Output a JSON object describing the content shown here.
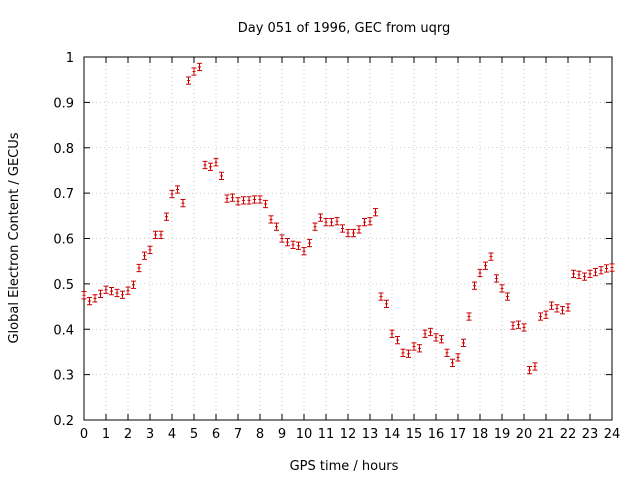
{
  "chart_data": {
    "type": "scatter",
    "title": "Day 051 of 1996, GEC from uqrg",
    "xlabel": "GPS time / hours",
    "ylabel": "Global Electron Content / GECUs",
    "xlim": [
      0,
      24
    ],
    "ylim": [
      0.2,
      1.0
    ],
    "xticks": [
      "0",
      "1",
      "2",
      "3",
      "4",
      "5",
      "6",
      "7",
      "8",
      "9",
      "10",
      "11",
      "12",
      "13",
      "14",
      "15",
      "16",
      "17",
      "18",
      "19",
      "20",
      "21",
      "22",
      "23",
      "24"
    ],
    "yticks": [
      "0.2",
      "0.3",
      "0.4",
      "0.5",
      "0.6",
      "0.7",
      "0.8",
      "0.9",
      "1"
    ],
    "grid": true,
    "marker": "error-bar",
    "series_color": "#cc0000",
    "errors": 0.008,
    "series": [
      {
        "points": [
          {
            "x": 0.0,
            "y": 0.475
          },
          {
            "x": 0.25,
            "y": 0.462
          },
          {
            "x": 0.5,
            "y": 0.468
          },
          {
            "x": 0.75,
            "y": 0.478
          },
          {
            "x": 1.0,
            "y": 0.487
          },
          {
            "x": 1.25,
            "y": 0.484
          },
          {
            "x": 1.5,
            "y": 0.48
          },
          {
            "x": 1.75,
            "y": 0.476
          },
          {
            "x": 2.0,
            "y": 0.485
          },
          {
            "x": 2.25,
            "y": 0.498
          },
          {
            "x": 2.5,
            "y": 0.535
          },
          {
            "x": 2.75,
            "y": 0.562
          },
          {
            "x": 3.0,
            "y": 0.575
          },
          {
            "x": 3.25,
            "y": 0.608
          },
          {
            "x": 3.5,
            "y": 0.608
          },
          {
            "x": 3.75,
            "y": 0.648
          },
          {
            "x": 4.0,
            "y": 0.698
          },
          {
            "x": 4.25,
            "y": 0.708
          },
          {
            "x": 4.5,
            "y": 0.678
          },
          {
            "x": 4.75,
            "y": 0.948
          },
          {
            "x": 5.0,
            "y": 0.968
          },
          {
            "x": 5.25,
            "y": 0.978
          },
          {
            "x": 5.5,
            "y": 0.762
          },
          {
            "x": 5.75,
            "y": 0.758
          },
          {
            "x": 6.0,
            "y": 0.768
          },
          {
            "x": 6.25,
            "y": 0.738
          },
          {
            "x": 6.5,
            "y": 0.688
          },
          {
            "x": 6.75,
            "y": 0.69
          },
          {
            "x": 7.0,
            "y": 0.682
          },
          {
            "x": 7.25,
            "y": 0.684
          },
          {
            "x": 7.5,
            "y": 0.684
          },
          {
            "x": 7.75,
            "y": 0.686
          },
          {
            "x": 8.0,
            "y": 0.686
          },
          {
            "x": 8.25,
            "y": 0.676
          },
          {
            "x": 8.5,
            "y": 0.642
          },
          {
            "x": 8.75,
            "y": 0.626
          },
          {
            "x": 9.0,
            "y": 0.6
          },
          {
            "x": 9.25,
            "y": 0.592
          },
          {
            "x": 9.5,
            "y": 0.586
          },
          {
            "x": 9.75,
            "y": 0.584
          },
          {
            "x": 10.0,
            "y": 0.572
          },
          {
            "x": 10.25,
            "y": 0.59
          },
          {
            "x": 10.5,
            "y": 0.626
          },
          {
            "x": 10.75,
            "y": 0.646
          },
          {
            "x": 11.0,
            "y": 0.636
          },
          {
            "x": 11.25,
            "y": 0.636
          },
          {
            "x": 11.5,
            "y": 0.638
          },
          {
            "x": 11.75,
            "y": 0.622
          },
          {
            "x": 12.0,
            "y": 0.612
          },
          {
            "x": 12.25,
            "y": 0.612
          },
          {
            "x": 12.5,
            "y": 0.62
          },
          {
            "x": 12.75,
            "y": 0.636
          },
          {
            "x": 13.0,
            "y": 0.638
          },
          {
            "x": 13.25,
            "y": 0.658
          },
          {
            "x": 13.5,
            "y": 0.472
          },
          {
            "x": 13.75,
            "y": 0.456
          },
          {
            "x": 14.0,
            "y": 0.39
          },
          {
            "x": 14.25,
            "y": 0.376
          },
          {
            "x": 14.5,
            "y": 0.348
          },
          {
            "x": 14.75,
            "y": 0.346
          },
          {
            "x": 15.0,
            "y": 0.362
          },
          {
            "x": 15.25,
            "y": 0.358
          },
          {
            "x": 15.5,
            "y": 0.39
          },
          {
            "x": 15.75,
            "y": 0.394
          },
          {
            "x": 16.0,
            "y": 0.382
          },
          {
            "x": 16.25,
            "y": 0.378
          },
          {
            "x": 16.5,
            "y": 0.348
          },
          {
            "x": 16.75,
            "y": 0.326
          },
          {
            "x": 17.0,
            "y": 0.338
          },
          {
            "x": 17.25,
            "y": 0.37
          },
          {
            "x": 17.5,
            "y": 0.428
          },
          {
            "x": 17.75,
            "y": 0.496
          },
          {
            "x": 18.0,
            "y": 0.524
          },
          {
            "x": 18.25,
            "y": 0.54
          },
          {
            "x": 18.5,
            "y": 0.56
          },
          {
            "x": 18.75,
            "y": 0.512
          },
          {
            "x": 19.0,
            "y": 0.49
          },
          {
            "x": 19.25,
            "y": 0.472
          },
          {
            "x": 19.5,
            "y": 0.408
          },
          {
            "x": 19.75,
            "y": 0.41
          },
          {
            "x": 20.0,
            "y": 0.404
          },
          {
            "x": 20.25,
            "y": 0.31
          },
          {
            "x": 20.5,
            "y": 0.318
          },
          {
            "x": 20.75,
            "y": 0.428
          },
          {
            "x": 21.0,
            "y": 0.432
          },
          {
            "x": 21.25,
            "y": 0.452
          },
          {
            "x": 21.5,
            "y": 0.446
          },
          {
            "x": 21.75,
            "y": 0.442
          },
          {
            "x": 22.0,
            "y": 0.448
          },
          {
            "x": 22.25,
            "y": 0.522
          },
          {
            "x": 22.5,
            "y": 0.52
          },
          {
            "x": 22.75,
            "y": 0.516
          },
          {
            "x": 23.0,
            "y": 0.522
          },
          {
            "x": 23.25,
            "y": 0.526
          },
          {
            "x": 23.5,
            "y": 0.53
          },
          {
            "x": 23.75,
            "y": 0.534
          },
          {
            "x": 24.0,
            "y": 0.536
          }
        ]
      }
    ]
  }
}
